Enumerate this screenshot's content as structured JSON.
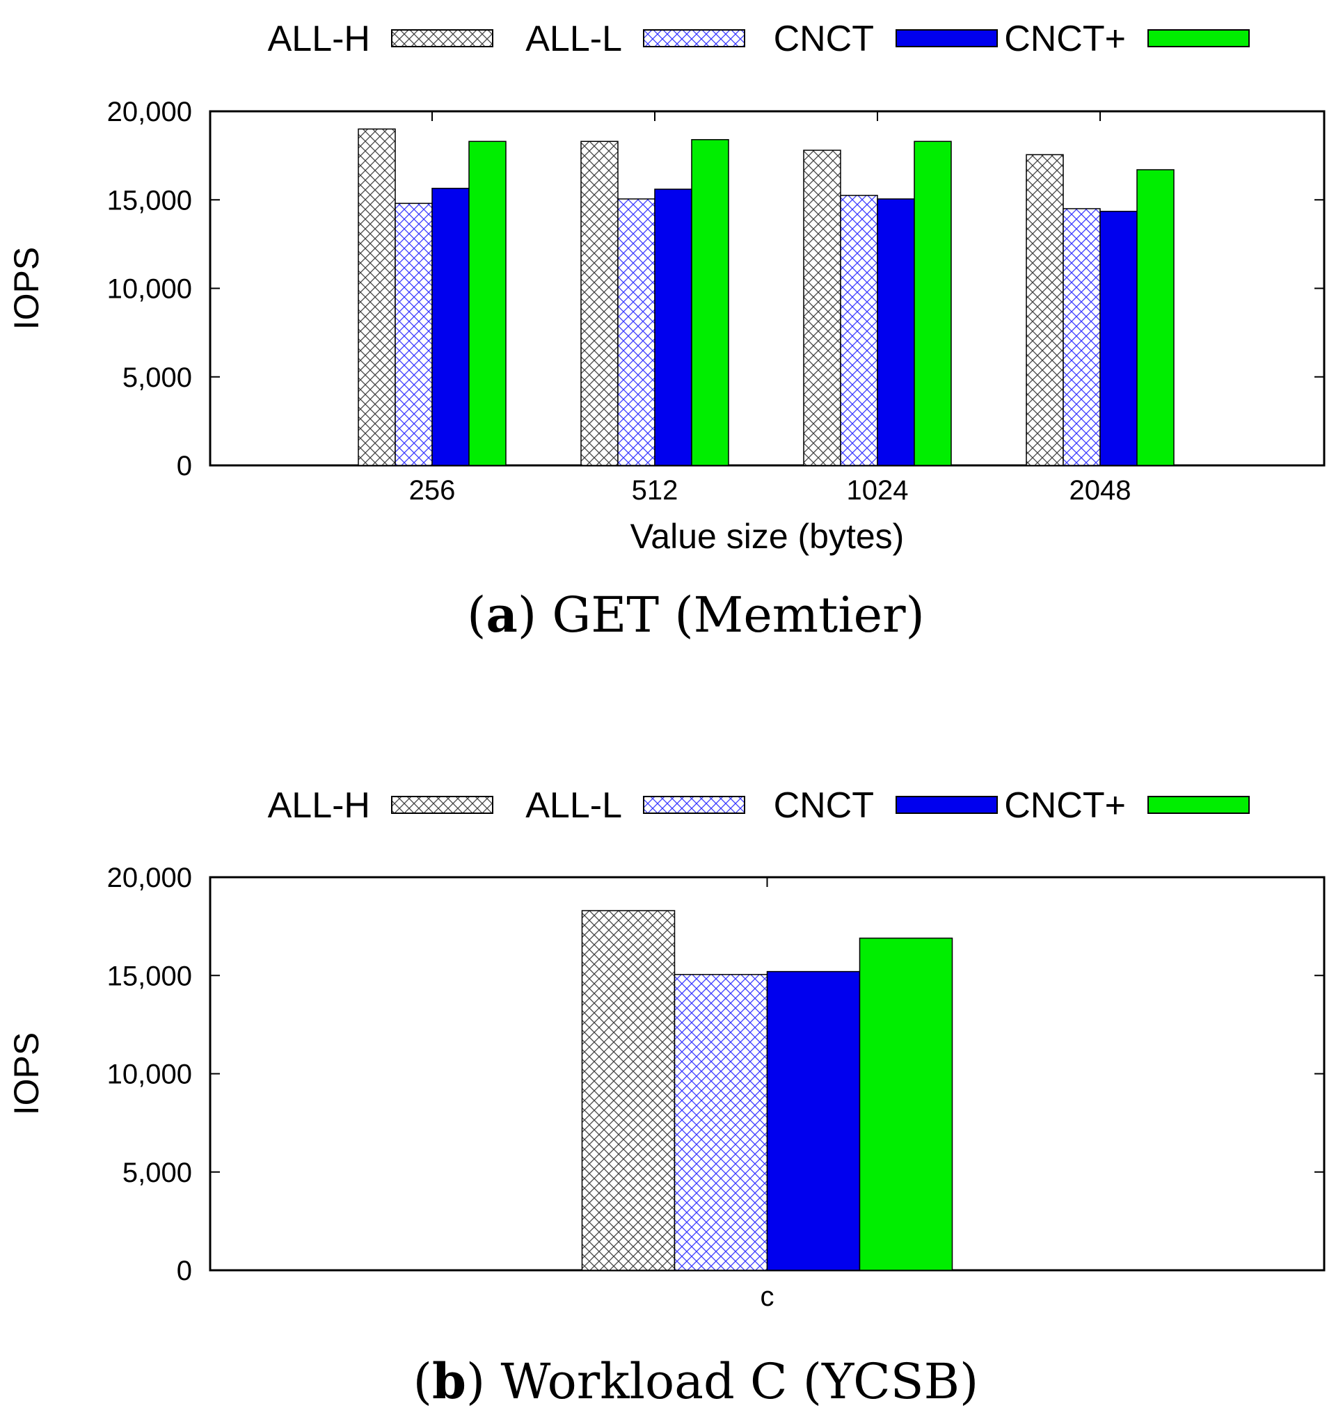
{
  "colors": {
    "ALL-H": "#b0b0b0",
    "ALL-L": "#3a3aff",
    "CNCT": "#0000ee",
    "CNCT+": "#00ee00"
  },
  "chart_data": [
    {
      "type": "bar",
      "caption_tag": "a",
      "caption_text": "GET (Memtier)",
      "xlabel": "Value size (bytes)",
      "ylabel": "IOPS",
      "ylim": [
        0,
        20000
      ],
      "yticks": [
        0,
        5000,
        10000,
        15000,
        20000
      ],
      "ytick_labels": [
        "0",
        "5,000",
        "10,000",
        "15,000",
        "20,000"
      ],
      "categories": [
        "256",
        "512",
        "1024",
        "2048"
      ],
      "legend_position": "top",
      "series": [
        {
          "name": "ALL-H",
          "pattern": "crosshatch-gray",
          "values": [
            19000,
            18300,
            17800,
            17550
          ]
        },
        {
          "name": "ALL-L",
          "pattern": "crosshatch-blue",
          "values": [
            14800,
            15050,
            15250,
            14500
          ]
        },
        {
          "name": "CNCT",
          "pattern": "solid-blue",
          "values": [
            15650,
            15600,
            15050,
            14350
          ]
        },
        {
          "name": "CNCT+",
          "pattern": "solid-green",
          "values": [
            18300,
            18400,
            18300,
            16700
          ]
        }
      ]
    },
    {
      "type": "bar",
      "caption_tag": "b",
      "caption_text": "Workload C (YCSB)",
      "xlabel": "",
      "ylabel": "IOPS",
      "ylim": [
        0,
        20000
      ],
      "yticks": [
        0,
        5000,
        10000,
        15000,
        20000
      ],
      "ytick_labels": [
        "0",
        "5,000",
        "10,000",
        "15,000",
        "20,000"
      ],
      "categories": [
        "c"
      ],
      "legend_position": "top",
      "series": [
        {
          "name": "ALL-H",
          "pattern": "crosshatch-gray",
          "values": [
            18300
          ]
        },
        {
          "name": "ALL-L",
          "pattern": "crosshatch-blue",
          "values": [
            15050
          ]
        },
        {
          "name": "CNCT",
          "pattern": "solid-blue",
          "values": [
            15200
          ]
        },
        {
          "name": "CNCT+",
          "pattern": "solid-green",
          "values": [
            16900
          ]
        }
      ]
    }
  ]
}
